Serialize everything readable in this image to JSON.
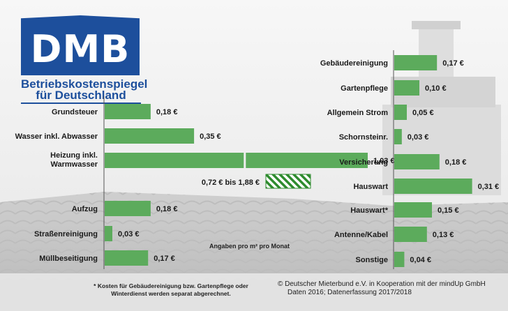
{
  "logo": {
    "brand": "DMB",
    "line1": "Betriebskostenspiegel",
    "line2": "für Deutschland"
  },
  "colors": {
    "bar": "#5cab5c",
    "bar_stroke": "#3d8a3d",
    "range_stripe": "#2e8b2e",
    "axis": "#555555",
    "logo_blue": "#1d4f9c"
  },
  "unit_note": "Angaben pro m² pro Monat",
  "footnote": {
    "line1": "* Kosten für Gebäudereinigung bzw. Gartenpflege oder",
    "line2": "Winterdienst werden separat abgerechnet."
  },
  "source": {
    "line1": "©  Deutscher Mieterbund e.V. in Kooperation mit der mindUp GmbH",
    "line2": "Daten 2016; Datenerfassung 2017/2018"
  },
  "chart_data": [
    {
      "type": "bar",
      "orientation": "horizontal",
      "categories": [
        "Grundsteuer",
        "Wasser inkl. Abwasser",
        "Heizung inkl. Warmwasser",
        "Aufzug",
        "Straßenreinigung",
        "Müllbeseitigung"
      ],
      "values": [
        0.18,
        0.35,
        1.03,
        0.18,
        0.03,
        0.17
      ],
      "value_labels": [
        "0,18 €",
        "0,35 €",
        "1,03 €",
        "0,18 €",
        "0,03 €",
        "0,17 €"
      ],
      "range": {
        "category": "Heizung inkl. Warmwasser",
        "min": 0.72,
        "max": 1.88,
        "label": "0,72 € bis 1,88 €"
      }
    },
    {
      "type": "bar",
      "orientation": "horizontal",
      "categories": [
        "Gebäudereinigung",
        "Gartenpflege",
        "Allgemein Strom",
        "Schornsteinr.",
        "Versicherung",
        "Hauswart",
        "Hauswart*",
        "Antenne/Kabel",
        "Sonstige"
      ],
      "values": [
        0.17,
        0.1,
        0.05,
        0.03,
        0.18,
        0.31,
        0.15,
        0.13,
        0.04
      ],
      "value_labels": [
        "0,17 €",
        "0,10 €",
        "0,05 €",
        "0,03 €",
        "0,18 €",
        "0,31 €",
        "0,15 €",
        "0,13 €",
        "0,04 €"
      ]
    }
  ]
}
